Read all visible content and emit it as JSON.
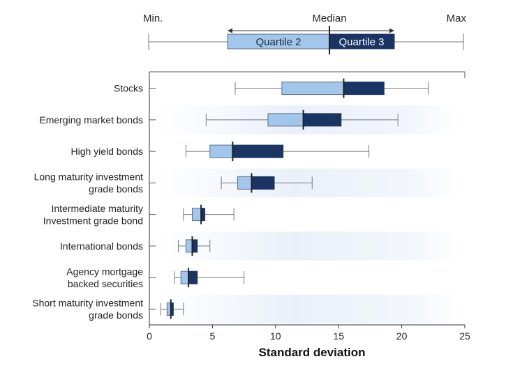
{
  "chart_data": {
    "type": "boxplot",
    "xlabel": "Standard deviation",
    "xlim": [
      0,
      25
    ],
    "xticks": [
      0,
      5,
      10,
      15,
      20,
      25
    ],
    "grid": false,
    "categories": [
      {
        "lines": [
          "Stocks"
        ],
        "min": 6.8,
        "q1": 10.5,
        "median": 15.4,
        "q3": 18.6,
        "max": 22.1
      },
      {
        "lines": [
          "Emerging market bonds"
        ],
        "min": 4.5,
        "q1": 9.4,
        "median": 12.2,
        "q3": 15.2,
        "max": 19.7
      },
      {
        "lines": [
          "High yield bonds"
        ],
        "min": 2.9,
        "q1": 4.8,
        "median": 6.6,
        "q3": 10.6,
        "max": 17.4
      },
      {
        "lines": [
          "Long maturity investment",
          "grade bonds"
        ],
        "min": 5.7,
        "q1": 7.0,
        "median": 8.1,
        "q3": 9.9,
        "max": 12.9
      },
      {
        "lines": [
          "Intermediate maturity",
          "Investment grade bond"
        ],
        "min": 2.7,
        "q1": 3.4,
        "median": 4.1,
        "q3": 4.4,
        "max": 6.7
      },
      {
        "lines": [
          "International bonds"
        ],
        "min": 2.3,
        "q1": 2.9,
        "median": 3.4,
        "q3": 3.8,
        "max": 4.8
      },
      {
        "lines": [
          "Agency mortgage",
          "backed securities"
        ],
        "min": 2.0,
        "q1": 2.5,
        "median": 3.1,
        "q3": 3.8,
        "max": 7.5
      },
      {
        "lines": [
          "Short maturity investment",
          "grade bonds"
        ],
        "min": 0.9,
        "q1": 1.4,
        "median": 1.7,
        "q3": 1.9,
        "max": 2.7
      }
    ],
    "legend": {
      "min_label": "Min.",
      "median_label": "Median",
      "max_label": "Max",
      "q2_label": "Quartile 2",
      "q3_label": "Quartile 3"
    },
    "colors": {
      "q2": "#a3c7ea",
      "q3": "#1a3464",
      "median": "#222222",
      "whisker": "#777777",
      "band": "#e8eef9"
    }
  }
}
